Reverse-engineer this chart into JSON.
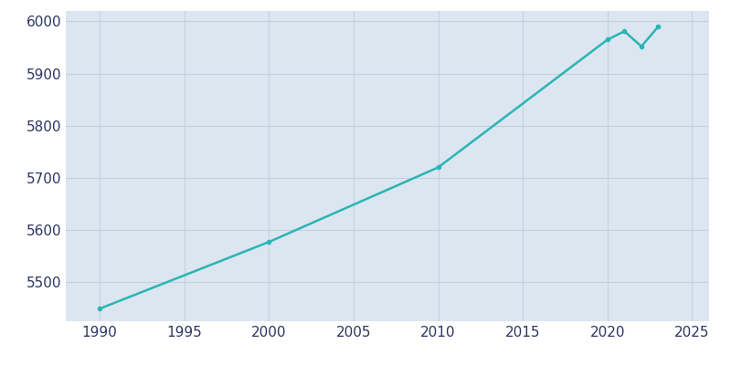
{
  "years": [
    1990,
    2000,
    2010,
    2020,
    2021,
    2022,
    2023
  ],
  "population": [
    5449,
    5577,
    5720,
    5965,
    5981,
    5952,
    5990
  ],
  "line_color": "#2ab5b5",
  "fig_bg_color": "#ffffff",
  "plot_bg_color": "#dce6f0",
  "text_color": "#2d3561",
  "xlim": [
    1988,
    2026
  ],
  "ylim": [
    5425,
    6020
  ],
  "xticks": [
    1990,
    1995,
    2000,
    2005,
    2010,
    2015,
    2020,
    2025
  ],
  "yticks": [
    5500,
    5600,
    5700,
    5800,
    5900,
    6000
  ],
  "grid_color": "#c5d0df",
  "line_width": 1.8,
  "marker_size": 4
}
